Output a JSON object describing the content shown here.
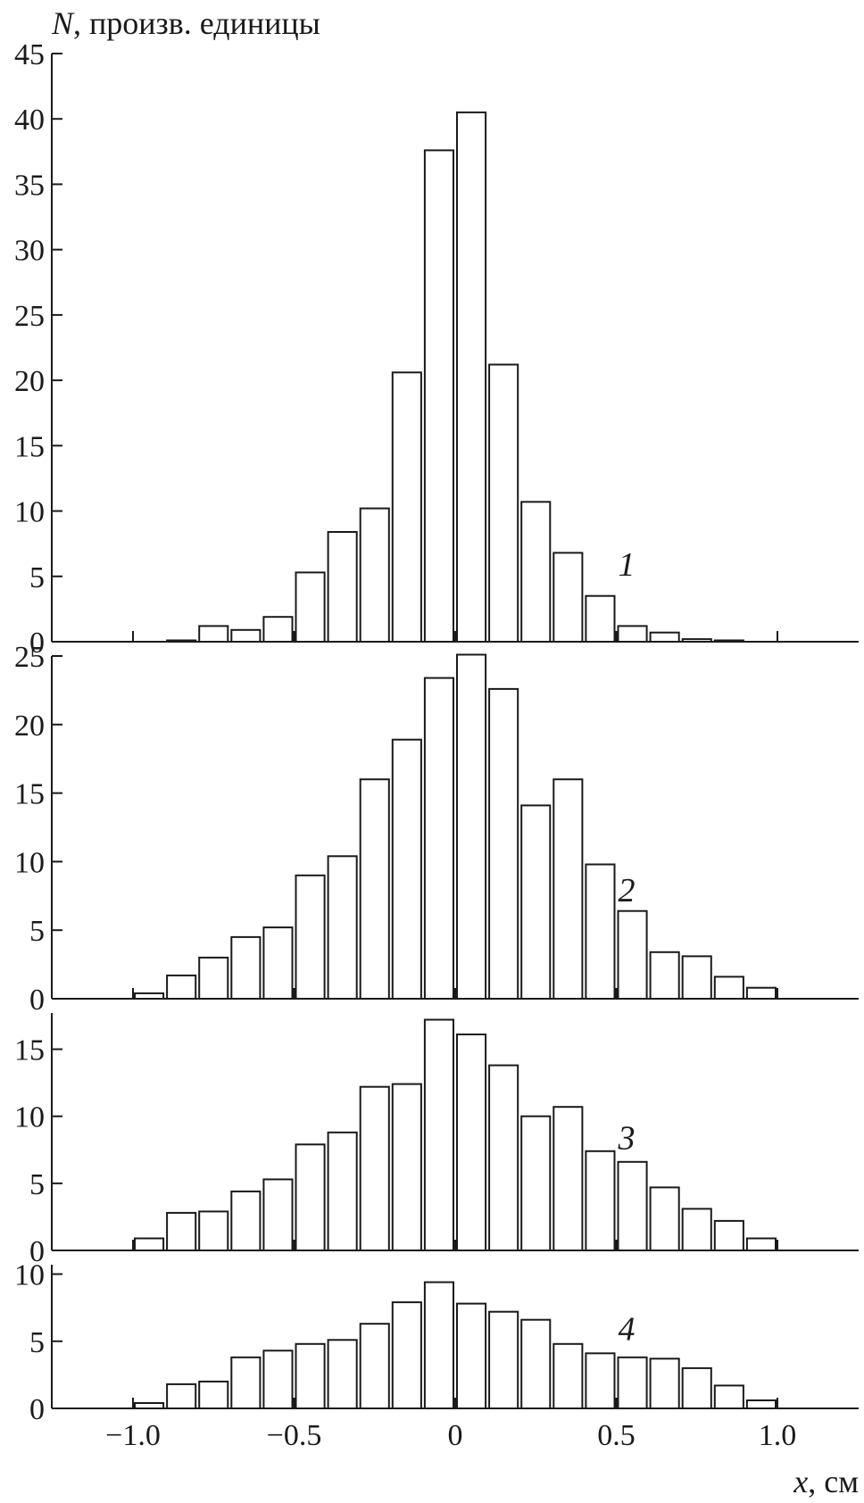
{
  "y_label": {
    "symbol": "N",
    "text": ", произв. единицы"
  },
  "x_label": {
    "symbol": "x",
    "text": ", см"
  },
  "x_ticks": [
    "−1.0",
    "−0.5",
    "0",
    "0.5",
    "1.0"
  ],
  "colors": {
    "ink": "#1a1a1a",
    "bar_fill": "#ffffff"
  },
  "chart_data": [
    {
      "type": "bar",
      "label": "1",
      "ylim": [
        0,
        45
      ],
      "xlim": [
        -1.25,
        1.25
      ],
      "yticks": [
        "0",
        "5",
        "10",
        "15",
        "20",
        "25",
        "30",
        "35",
        "40",
        "45"
      ],
      "bin_width": 0.1,
      "x": [
        -0.9,
        -0.8,
        -0.7,
        -0.6,
        -0.5,
        -0.4,
        -0.3,
        -0.2,
        -0.1,
        0.0,
        0.1,
        0.2,
        0.3,
        0.4,
        0.5,
        0.6,
        0.7,
        0.8
      ],
      "values": [
        0.1,
        1.2,
        0.9,
        1.9,
        5.3,
        8.4,
        10.2,
        20.6,
        37.6,
        40.5,
        21.2,
        10.7,
        6.8,
        3.5,
        1.2,
        0.7,
        0.2,
        0.1
      ]
    },
    {
      "type": "bar",
      "label": "2",
      "ylim": [
        0,
        25
      ],
      "xlim": [
        -1.25,
        1.25
      ],
      "yticks": [
        "0",
        "5",
        "10",
        "15",
        "20",
        "25"
      ],
      "bin_width": 0.1,
      "x": [
        -1.0,
        -0.9,
        -0.8,
        -0.7,
        -0.6,
        -0.5,
        -0.4,
        -0.3,
        -0.2,
        -0.1,
        0.0,
        0.1,
        0.2,
        0.3,
        0.4,
        0.5,
        0.6,
        0.7,
        0.8,
        0.9
      ],
      "values": [
        0.4,
        1.7,
        3.0,
        4.5,
        5.2,
        9.0,
        10.4,
        16.0,
        18.9,
        23.4,
        25.1,
        22.6,
        14.1,
        16.0,
        9.8,
        6.4,
        3.4,
        3.1,
        1.6,
        0.8
      ]
    },
    {
      "type": "bar",
      "label": "3",
      "ylim": [
        0,
        17.7
      ],
      "xlim": [
        -1.25,
        1.25
      ],
      "yticks": [
        "0",
        "5",
        "10",
        "15"
      ],
      "bin_width": 0.1,
      "x": [
        -1.0,
        -0.9,
        -0.8,
        -0.7,
        -0.6,
        -0.5,
        -0.4,
        -0.3,
        -0.2,
        -0.1,
        0.0,
        0.1,
        0.2,
        0.3,
        0.4,
        0.5,
        0.6,
        0.7,
        0.8,
        0.9
      ],
      "values": [
        0.9,
        2.8,
        2.9,
        4.4,
        5.3,
        7.9,
        8.8,
        12.2,
        12.4,
        17.2,
        16.1,
        13.8,
        10.0,
        10.7,
        7.4,
        6.6,
        4.7,
        3.1,
        2.2,
        0.9
      ]
    },
    {
      "type": "bar",
      "label": "4",
      "ylim": [
        0,
        10.7
      ],
      "xlim": [
        -1.25,
        1.25
      ],
      "yticks": [
        "0",
        "5",
        "10"
      ],
      "bin_width": 0.1,
      "x": [
        -1.0,
        -0.9,
        -0.8,
        -0.7,
        -0.6,
        -0.5,
        -0.4,
        -0.3,
        -0.2,
        -0.1,
        0.0,
        0.1,
        0.2,
        0.3,
        0.4,
        0.5,
        0.6,
        0.7,
        0.8,
        0.9
      ],
      "values": [
        0.4,
        1.8,
        2.0,
        3.8,
        4.3,
        4.8,
        5.1,
        6.3,
        7.9,
        9.4,
        7.8,
        7.2,
        6.6,
        4.8,
        4.1,
        3.8,
        3.7,
        3.0,
        1.7,
        0.6
      ]
    }
  ]
}
